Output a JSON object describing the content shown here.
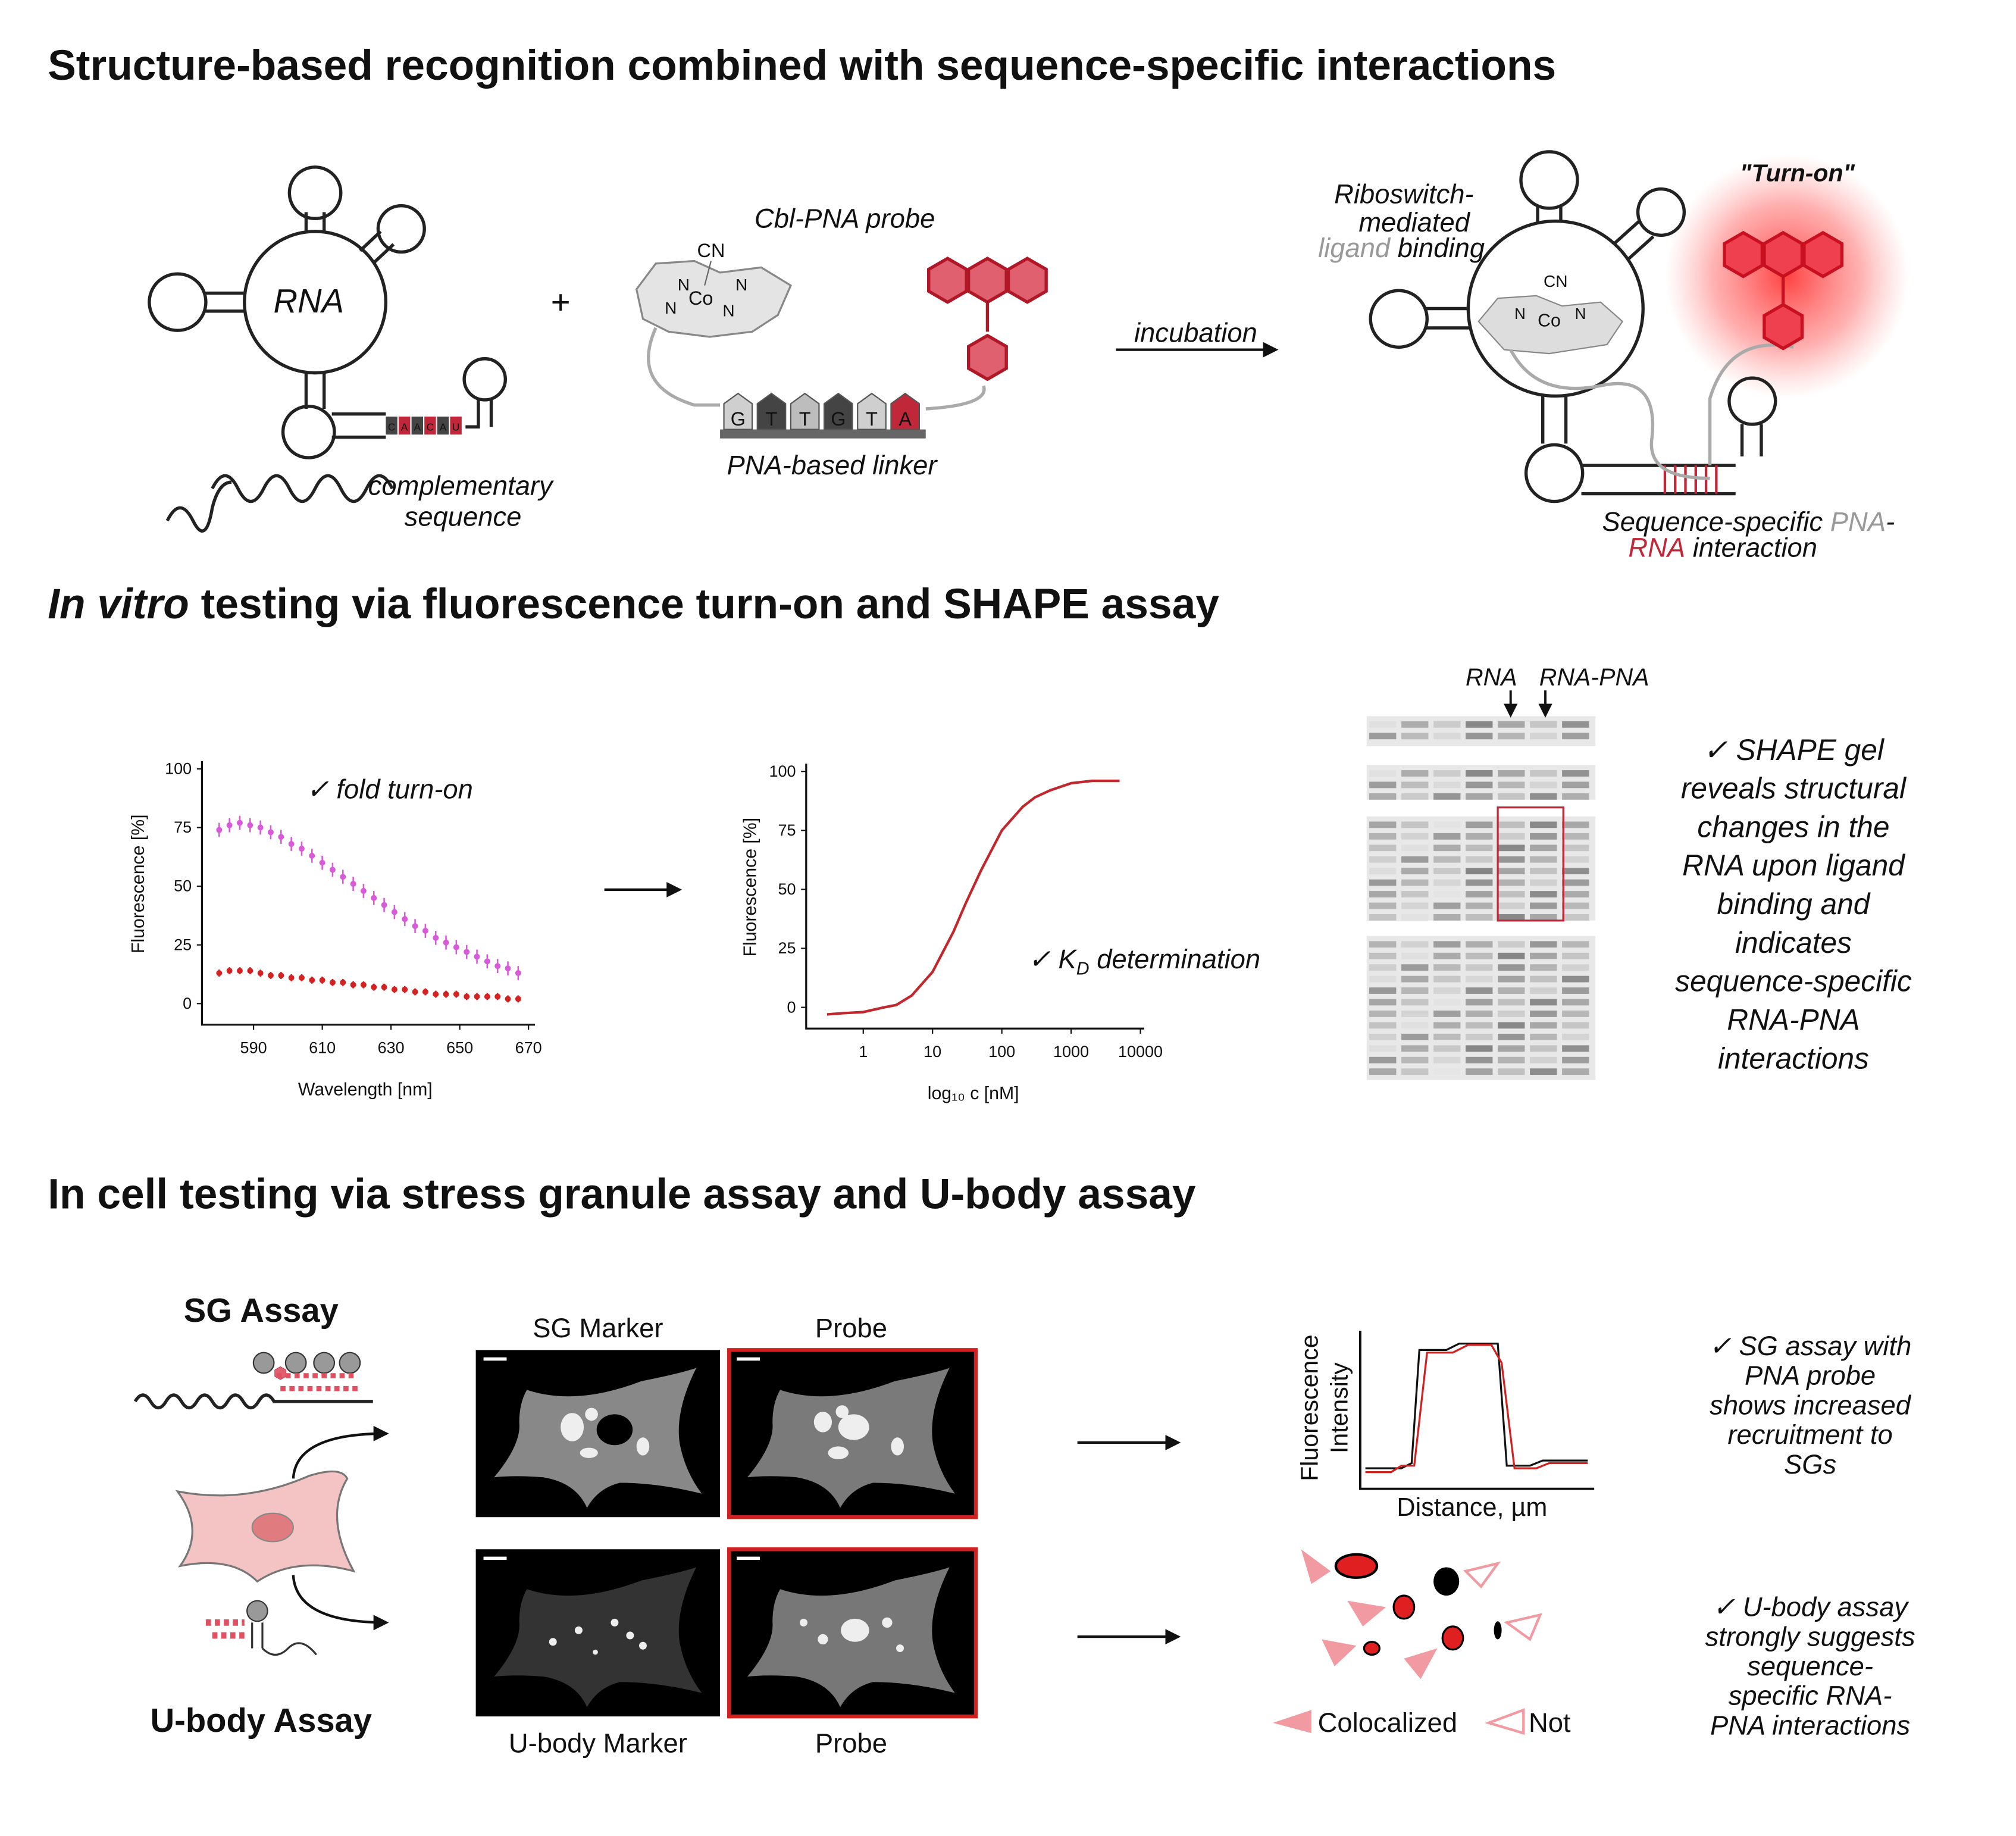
{
  "section1": {
    "title": "Structure-based recognition combined with sequence-specific interactions",
    "rna_label": "RNA",
    "plus": "+",
    "probe_label": "Cbl-PNA probe",
    "cn": "CN",
    "co": "Co",
    "n": "N",
    "pna_bases": [
      "G",
      "T",
      "T",
      "G",
      "T",
      "A"
    ],
    "rna_bases": [
      "C",
      "A",
      "A",
      "C",
      "A",
      "U"
    ],
    "linker_label": "PNA-based linker",
    "complementary": [
      "complementary",
      "sequence"
    ],
    "incubation": "incubation",
    "riboswitch": [
      "Riboswitch-",
      "mediated"
    ],
    "ligand": "ligand",
    "binding": " binding",
    "turn_on": "\"Turn-on\"",
    "interaction": {
      "part1": "Sequence-specific ",
      "pna": "PNA",
      "dash": "-",
      "rna": "RNA",
      "part2": " interaction"
    }
  },
  "section2": {
    "title_italic": "In vitro",
    "title": " testing via fluorescence turn-on and SHAPE assay",
    "gel_lanes": [
      "RNA",
      "RNA-PNA"
    ],
    "shape_text": [
      "✓ SHAPE gel",
      "reveals structural",
      "changes in the",
      "RNA upon ligand",
      "binding and",
      "indicates",
      "sequence-specific",
      "RNA-PNA",
      "interactions"
    ]
  },
  "chart_data": [
    {
      "type": "scatter",
      "annotation": "✓ fold turn-on",
      "xlabel": "Wavelength [nm]",
      "ylabel": "Fluorescence [%]",
      "x": [
        580,
        583,
        586,
        589,
        592,
        595,
        598,
        601,
        604,
        607,
        610,
        613,
        616,
        619,
        622,
        625,
        628,
        631,
        634,
        637,
        640,
        643,
        646,
        649,
        652,
        655,
        658,
        661,
        664,
        667
      ],
      "series": [
        {
          "color": "#d85ad8",
          "values": [
            74,
            76,
            77,
            76,
            75,
            73,
            71,
            68,
            66,
            63,
            60,
            57,
            54,
            51,
            48,
            45,
            42,
            39,
            36,
            33,
            31,
            28,
            26,
            24,
            22,
            20,
            18,
            16,
            15,
            13
          ],
          "errors": [
            3,
            3,
            3,
            3,
            3,
            3,
            3,
            3,
            3,
            3,
            3,
            3,
            3,
            3,
            3,
            3,
            3,
            3,
            3,
            3,
            3,
            3,
            3,
            3,
            3,
            3,
            3,
            3,
            3,
            3
          ]
        },
        {
          "color": "#d42222",
          "values": [
            13,
            14,
            14,
            14,
            13,
            12,
            12,
            11,
            11,
            10,
            10,
            9,
            9,
            8,
            8,
            7,
            7,
            6,
            6,
            5,
            5,
            4,
            4,
            4,
            3,
            3,
            3,
            3,
            2,
            2
          ],
          "errors": [
            1.5,
            1.5,
            1.5,
            1.5,
            1.5,
            1.5,
            1.5,
            1.5,
            1.5,
            1.5,
            1.5,
            1.5,
            1.5,
            1.5,
            1.5,
            1.5,
            1.5,
            1.5,
            1.5,
            1.5,
            1.5,
            1.5,
            1.5,
            1.5,
            1.5,
            1.5,
            1.5,
            1.5,
            1.5,
            1.5
          ]
        }
      ],
      "xlim": [
        575,
        670
      ],
      "ylim": [
        -9,
        100
      ],
      "xticks": [
        590,
        610,
        630,
        650,
        670
      ],
      "yticks": [
        0,
        25,
        50,
        75,
        100
      ]
    },
    {
      "type": "line",
      "annotation": {
        "prefix": "✓ K",
        "subscript": "D",
        "suffix": " determination"
      },
      "xlabel": "log₁₀ c [nM]",
      "ylabel": "Fluorescence [%]",
      "log_x": true,
      "x": [
        0.3,
        0.5,
        1,
        2,
        3,
        5,
        10,
        20,
        30,
        50,
        100,
        200,
        300,
        500,
        1000,
        2000,
        5000
      ],
      "series": [
        {
          "color": "#c0282e",
          "values": [
            -3,
            -2.5,
            -2,
            0,
            1,
            5,
            15,
            32,
            44,
            58,
            75,
            85,
            89,
            92,
            95,
            96,
            96
          ]
        }
      ],
      "xlim": [
        0.15,
        10000
      ],
      "ylim": [
        -9,
        100
      ],
      "xticks": [
        1,
        10,
        100,
        1000,
        10000
      ],
      "yticks": [
        0,
        25,
        50,
        75,
        100
      ]
    }
  ],
  "section3": {
    "title": "In cell testing via stress granule assay and U-body assay",
    "sg_assay": "SG Assay",
    "ubody_assay": "U-body Assay",
    "sg_marker": "SG Marker",
    "probe": "Probe",
    "ubody_marker": "U-body Marker",
    "profile": {
      "ylabel": [
        "Fluorescence",
        "Intensity"
      ],
      "xlabel": "Distance, µm"
    },
    "legend": {
      "colocalized": "Colocalized",
      "not": "Not"
    },
    "sg_text": [
      "✓ SG assay with",
      "PNA probe",
      "shows increased",
      "recruitment to",
      "SGs"
    ],
    "ubody_text": [
      "✓ U-body assay",
      "strongly suggests",
      "sequence-",
      "specific RNA-",
      "PNA interactions"
    ]
  }
}
